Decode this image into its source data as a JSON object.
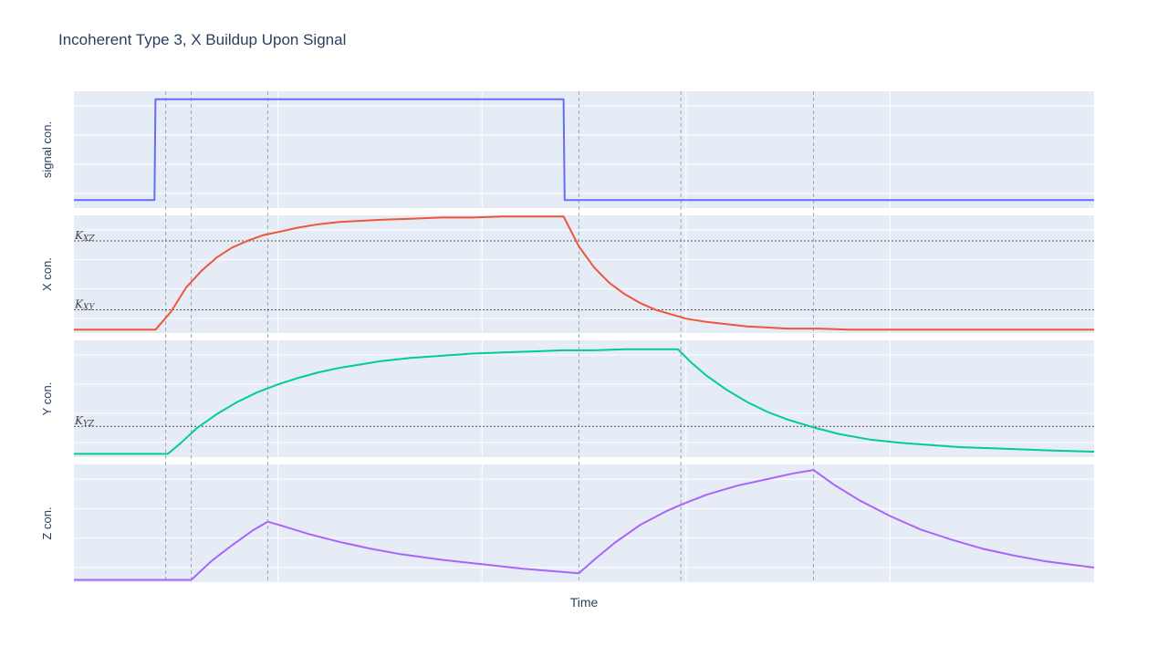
{
  "chart_data": {
    "type": "line",
    "title": "Incoherent Type 3, X Buildup Upon Signal",
    "xlabel": "Time",
    "xlim": [
      0,
      10
    ],
    "grid": true,
    "event_times": [
      0.9,
      1.15,
      1.9,
      4.95,
      5.95,
      7.25
    ],
    "panels": [
      {
        "id": "signal",
        "ylabel": "signal con.",
        "color": "#636efa",
        "ylim": [
          -0.08,
          1.08
        ],
        "thresholds": [],
        "x": [
          0,
          0.79,
          0.8,
          4.8,
          4.81,
          10
        ],
        "y": [
          0,
          0,
          1,
          1,
          0,
          0
        ]
      },
      {
        "id": "x",
        "ylabel": "X con.",
        "color": "#ef553b",
        "ylim": [
          -0.03,
          1.03
        ],
        "thresholds": [
          {
            "label": "K_XZ",
            "sub": "XZ",
            "value": 0.8
          },
          {
            "label": "K_XY",
            "sub": "XY",
            "value": 0.18
          }
        ],
        "x": [
          0,
          0.8,
          0.95,
          1.1,
          1.25,
          1.4,
          1.55,
          1.7,
          1.85,
          2.0,
          2.2,
          2.4,
          2.6,
          2.8,
          3.0,
          3.3,
          3.6,
          3.9,
          4.2,
          4.5,
          4.8,
          4.95,
          5.1,
          5.25,
          5.4,
          5.55,
          5.7,
          5.85,
          6.0,
          6.2,
          6.4,
          6.6,
          6.8,
          7.0,
          7.3,
          7.6,
          7.9,
          8.2,
          8.5,
          8.8,
          9.1,
          9.4,
          9.7,
          10
        ],
        "y": [
          0,
          0,
          0.16,
          0.38,
          0.53,
          0.65,
          0.74,
          0.8,
          0.85,
          0.88,
          0.92,
          0.95,
          0.97,
          0.98,
          0.99,
          1.0,
          1.01,
          1.01,
          1.02,
          1.02,
          1.02,
          0.75,
          0.56,
          0.42,
          0.32,
          0.24,
          0.18,
          0.14,
          0.1,
          0.07,
          0.05,
          0.03,
          0.02,
          0.01,
          0.01,
          0,
          0,
          0,
          0,
          0,
          0,
          0,
          0,
          0
        ]
      },
      {
        "id": "y",
        "ylabel": "Y con.",
        "color": "#00cc96",
        "ylim": [
          -0.03,
          1.03
        ],
        "thresholds": [
          {
            "label": "K_YZ",
            "sub": "YZ",
            "value": 0.25
          }
        ],
        "x": [
          0,
          0.92,
          1.05,
          1.2,
          1.4,
          1.6,
          1.8,
          2.0,
          2.2,
          2.4,
          2.6,
          2.8,
          3.0,
          3.3,
          3.6,
          3.9,
          4.2,
          4.5,
          4.8,
          5.1,
          5.4,
          5.7,
          5.92,
          6.05,
          6.2,
          6.4,
          6.6,
          6.8,
          7.0,
          7.25,
          7.5,
          7.8,
          8.1,
          8.4,
          8.7,
          9.0,
          9.3,
          9.6,
          10
        ],
        "y": [
          0,
          0,
          0.1,
          0.23,
          0.36,
          0.47,
          0.56,
          0.63,
          0.69,
          0.74,
          0.78,
          0.81,
          0.84,
          0.87,
          0.89,
          0.91,
          0.92,
          0.93,
          0.94,
          0.94,
          0.95,
          0.95,
          0.95,
          0.83,
          0.71,
          0.58,
          0.47,
          0.38,
          0.31,
          0.24,
          0.18,
          0.13,
          0.1,
          0.08,
          0.06,
          0.05,
          0.04,
          0.03,
          0.02
        ]
      },
      {
        "id": "z",
        "ylabel": "Z con.",
        "color": "#ab63fa",
        "ylim": [
          -0.02,
          1.03
        ],
        "thresholds": [],
        "x": [
          0,
          1.15,
          1.35,
          1.55,
          1.75,
          1.9,
          2.05,
          2.3,
          2.6,
          2.9,
          3.2,
          3.6,
          4.0,
          4.4,
          4.8,
          4.95,
          5.1,
          5.3,
          5.55,
          5.8,
          5.95,
          6.2,
          6.5,
          6.8,
          7.05,
          7.25,
          7.45,
          7.7,
          8.0,
          8.3,
          8.6,
          8.9,
          9.2,
          9.5,
          10
        ],
        "y": [
          0,
          0,
          0.17,
          0.31,
          0.44,
          0.52,
          0.48,
          0.41,
          0.34,
          0.28,
          0.23,
          0.18,
          0.14,
          0.1,
          0.07,
          0.06,
          0.18,
          0.33,
          0.49,
          0.61,
          0.67,
          0.76,
          0.84,
          0.9,
          0.95,
          0.98,
          0.85,
          0.71,
          0.57,
          0.45,
          0.36,
          0.28,
          0.22,
          0.17,
          0.11
        ]
      }
    ]
  }
}
